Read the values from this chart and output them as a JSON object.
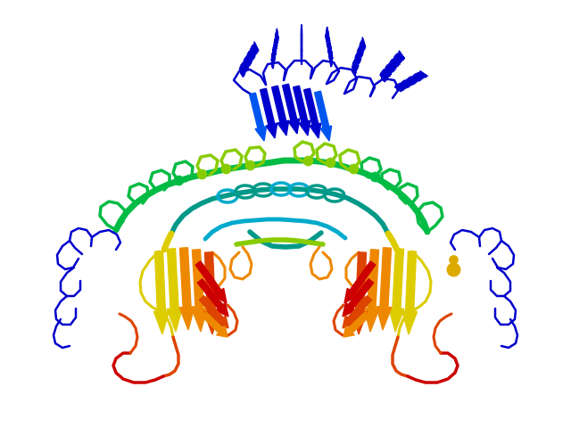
{
  "title": "",
  "background_color": "#ffffff",
  "figsize": [
    6.4,
    4.8
  ],
  "dpi": 100,
  "colors": {
    "blue": "#0000cc",
    "cyan_blue": "#0055ee",
    "cyan": "#00aacc",
    "teal": "#009988",
    "green": "#00bb44",
    "yellow_green": "#88cc00",
    "yellow": "#ddcc00",
    "orange": "#ee8800",
    "red_orange": "#dd4400",
    "red": "#cc0000",
    "gold": "#ddaa00"
  }
}
